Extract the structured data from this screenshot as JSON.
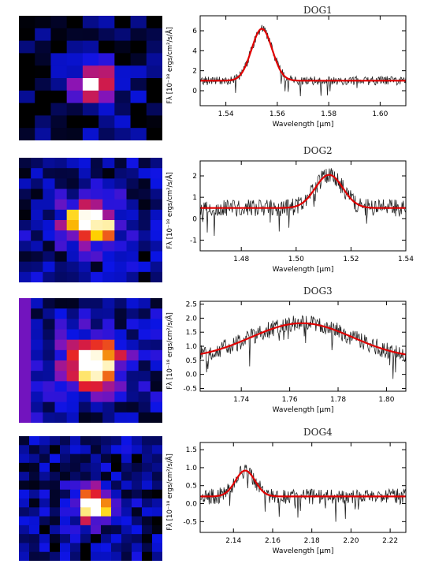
{
  "panels": [
    {
      "title": "DOG1",
      "ylabel": "Fλ [10⁻¹⁸ ergs/cm²/s/Å]",
      "xlabel": "Wavelength [μm]",
      "thumb_seed": 11,
      "thumb_peak": [
        0.52,
        0.55
      ],
      "thumb_sigma": 0.1,
      "thumb_bg": 0.05,
      "thumb_grid": [
        9,
        10
      ],
      "chart_data": {
        "type": "line",
        "xlim": [
          1.53,
          1.61
        ],
        "ylim": [
          -1.5,
          7.5
        ],
        "xticks": [
          1.54,
          1.56,
          1.58,
          1.6
        ],
        "xtick_labels": [
          "1.54",
          "1.56",
          "1.58",
          "1.60"
        ],
        "yticks": [
          0,
          2,
          4,
          6
        ],
        "ytick_labels": [
          "0",
          "2",
          "4",
          "6"
        ],
        "continuum": 1.0,
        "amp": 5.2,
        "center": 1.554,
        "sigma": 0.004,
        "noise": 0.45,
        "series": [
          {
            "kind": "observed"
          },
          {
            "kind": "gaussian-fit",
            "color": "#e00000"
          }
        ]
      }
    },
    {
      "title": "DOG2",
      "ylabel": "Fλ [10⁻¹⁸ ergs/cm²/s/Å]",
      "xlabel": "Wavelength [μm]",
      "thumb_seed": 23,
      "thumb_peak": [
        0.5,
        0.52
      ],
      "thumb_sigma": 0.13,
      "thumb_bg": 0.12,
      "thumb_grid": [
        12,
        12
      ],
      "chart_data": {
        "type": "line",
        "xlim": [
          1.465,
          1.54
        ],
        "ylim": [
          -1.5,
          2.7
        ],
        "xticks": [
          1.48,
          1.5,
          1.52,
          1.54
        ],
        "xtick_labels": [
          "1.48",
          "1.50",
          "1.52",
          "1.54"
        ],
        "yticks": [
          -1,
          0,
          1,
          2
        ],
        "ytick_labels": [
          "-1",
          "0",
          "1",
          "2"
        ],
        "continuum": 0.5,
        "amp": 1.55,
        "center": 1.512,
        "sigma": 0.005,
        "noise": 0.4,
        "series": [
          {
            "kind": "observed"
          },
          {
            "kind": "gaussian-fit",
            "color": "#e00000"
          }
        ]
      }
    },
    {
      "title": "DOG3",
      "ylabel": "Fλ [10⁻¹⁸ ergs/cm²/s/Å]",
      "xlabel": "Wavelength [μm]",
      "thumb_seed": 37,
      "thumb_peak": [
        0.52,
        0.52
      ],
      "thumb_sigma": 0.14,
      "thumb_bg": 0.15,
      "thumb_grid": [
        12,
        12
      ],
      "chart_data": {
        "type": "line",
        "xlim": [
          1.723,
          1.808
        ],
        "ylim": [
          -0.6,
          2.6
        ],
        "xticks": [
          1.74,
          1.76,
          1.78,
          1.8
        ],
        "xtick_labels": [
          "1.74",
          "1.76",
          "1.78",
          "1.80"
        ],
        "yticks": [
          -0.5,
          0,
          0.5,
          1,
          1.5,
          2,
          2.5
        ],
        "ytick_labels": [
          "-0.5",
          "0.0",
          "0.5",
          "1.0",
          "1.5",
          "2.0",
          "2.5"
        ],
        "continuum": 0.55,
        "amp": 1.27,
        "center": 1.765,
        "sigma": 0.021,
        "noise": 0.3,
        "series": [
          {
            "kind": "observed"
          },
          {
            "kind": "gaussian-fit",
            "color": "#e00000"
          }
        ]
      }
    },
    {
      "title": "DOG4",
      "ylabel": "Fλ [10⁻¹⁸ ergs/cm²/s/Å]",
      "xlabel": "Wavelength [μm]",
      "thumb_seed": 51,
      "thumb_peak": [
        0.52,
        0.55
      ],
      "thumb_sigma": 0.1,
      "thumb_bg": 0.1,
      "thumb_grid": [
        14,
        14
      ],
      "chart_data": {
        "type": "line",
        "xlim": [
          2.123,
          2.228
        ],
        "ylim": [
          -0.8,
          1.7
        ],
        "xticks": [
          2.14,
          2.16,
          2.18,
          2.2,
          2.22
        ],
        "xtick_labels": [
          "2.14",
          "2.16",
          "2.18",
          "2.20",
          "2.22"
        ],
        "yticks": [
          -0.5,
          0,
          0.5,
          1,
          1.5
        ],
        "ytick_labels": [
          "-0.5",
          "0.0",
          "0.5",
          "1.0",
          "1.5"
        ],
        "continuum": 0.2,
        "amp": 0.72,
        "center": 2.146,
        "sigma": 0.005,
        "noise": 0.22,
        "series": [
          {
            "kind": "observed"
          },
          {
            "kind": "gaussian-fit",
            "color": "#e00000"
          }
        ]
      }
    }
  ]
}
